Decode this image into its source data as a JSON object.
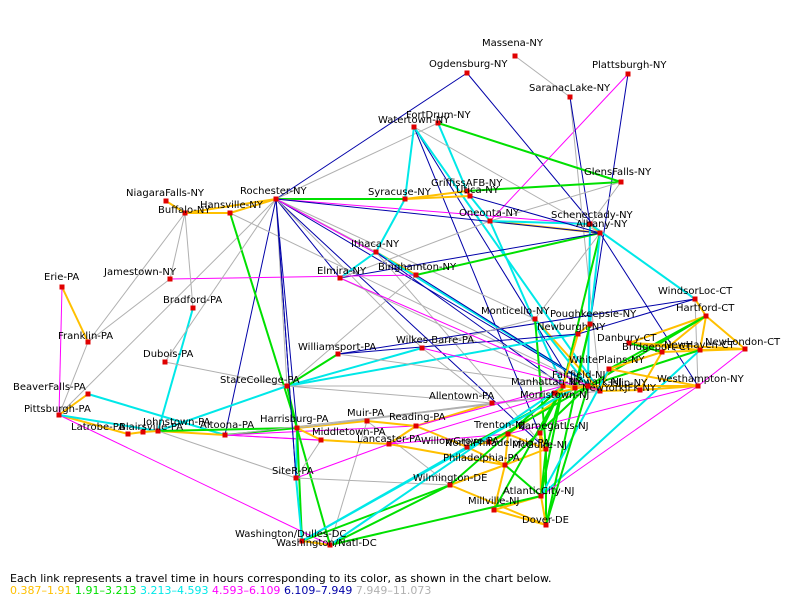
{
  "caption": "Each link represents a travel time in hours corresponding to its color, as shown in the chart below.",
  "legend": [
    {
      "label": "0.387–1.91",
      "color": "#ffc000"
    },
    {
      "label": "1.91–3.213",
      "color": "#00e000"
    },
    {
      "label": "3.213–4.593",
      "color": "#00e8e8"
    },
    {
      "label": "4.593–6.109",
      "color": "#ff00ff"
    },
    {
      "label": "6.109–7.949",
      "color": "#0000a8"
    },
    {
      "label": "7.949–11.073",
      "color": "#b0b0b0"
    }
  ],
  "nodes": [
    {
      "id": "massena",
      "label": "Massena-NY"
    },
    {
      "id": "ogdensburg",
      "label": "Ogdensburg-NY"
    },
    {
      "id": "plattsburgh",
      "label": "Plattsburgh-NY"
    },
    {
      "id": "saranac",
      "label": "SaranacLake-NY"
    },
    {
      "id": "fortdrum",
      "label": "FortDrum-NY"
    },
    {
      "id": "watertown",
      "label": "Watertown-NY"
    },
    {
      "id": "glensfalls",
      "label": "GlensFalls-NY"
    },
    {
      "id": "griffiss",
      "label": "GriffissAFB-NY"
    },
    {
      "id": "utica",
      "label": "Utica-NY"
    },
    {
      "id": "niagara",
      "label": "NiagaraFalls-NY"
    },
    {
      "id": "rochester",
      "label": "Rochester-NY"
    },
    {
      "id": "syracuse",
      "label": "Syracuse-NY"
    },
    {
      "id": "oneonta",
      "label": "Oneonta-NY"
    },
    {
      "id": "buffalo",
      "label": "Buffalo-NY"
    },
    {
      "id": "hansville",
      "label": "Hansville-NY"
    },
    {
      "id": "schenectady",
      "label": "Schenectady-NY"
    },
    {
      "id": "albany",
      "label": "Albany-NY"
    },
    {
      "id": "ithaca",
      "label": "Ithaca-NY"
    },
    {
      "id": "binghamton",
      "label": "Binghamton-NY"
    },
    {
      "id": "jamestown",
      "label": "Jamestown-NY"
    },
    {
      "id": "elmira",
      "label": "Elmira-NY"
    },
    {
      "id": "erie",
      "label": "Erie-PA"
    },
    {
      "id": "bradford",
      "label": "Bradford-PA"
    },
    {
      "id": "windsorloc",
      "label": "WindsorLoc-CT"
    },
    {
      "id": "hartford",
      "label": "Hartford-CT"
    },
    {
      "id": "monticello",
      "label": "Monticello-NY"
    },
    {
      "id": "poughkeepsie",
      "label": "Poughkeepsie-NY"
    },
    {
      "id": "newburgh",
      "label": "Newburgh-NY"
    },
    {
      "id": "franklin",
      "label": "Franklin-PA"
    },
    {
      "id": "danbury",
      "label": "Danbury-CT"
    },
    {
      "id": "newlondon",
      "label": "NewLondon-CT"
    },
    {
      "id": "dubois",
      "label": "Dubois-PA"
    },
    {
      "id": "williamsport",
      "label": "Williamsport-PA"
    },
    {
      "id": "wilkesbarre",
      "label": "Wilkes-Barre-PA"
    },
    {
      "id": "bridgeport",
      "label": "Bridgeport-CT"
    },
    {
      "id": "newhaven",
      "label": "NewHaven-CT"
    },
    {
      "id": "whiteplains",
      "label": "WhitePlains-NY"
    },
    {
      "id": "westhampton",
      "label": "Westhampton-NY"
    },
    {
      "id": "statecollege",
      "label": "StateCollege-PA"
    },
    {
      "id": "beaverfalls",
      "label": "BeaverFalls-PA"
    },
    {
      "id": "allentown",
      "label": "Allentown-PA"
    },
    {
      "id": "pittsburgh",
      "label": "Pittsburgh-PA"
    },
    {
      "id": "johnstown",
      "label": "Johnstown-PA"
    },
    {
      "id": "altoona",
      "label": "Altoona-PA"
    },
    {
      "id": "harrisburg",
      "label": "Harrisburg-PA"
    },
    {
      "id": "muir",
      "label": "Muir-PA"
    },
    {
      "id": "reading",
      "label": "Reading-PA"
    },
    {
      "id": "latrobe",
      "label": "Latrobe-PA"
    },
    {
      "id": "blairsville",
      "label": "Blairsville-PA"
    },
    {
      "id": "trenton",
      "label": "Trenton-NJ"
    },
    {
      "id": "barnegat",
      "label": "BarnegatLs-NJ"
    },
    {
      "id": "willowgrove",
      "label": "WillowGrove-PA"
    },
    {
      "id": "middletown",
      "label": "Middletown-PA"
    },
    {
      "id": "lancaster",
      "label": "Lancaster-PA"
    },
    {
      "id": "northphila",
      "label": "NorthPhiladelphia-PA"
    },
    {
      "id": "mcguire",
      "label": "McGuire-NJ"
    },
    {
      "id": "philadelphia",
      "label": "Philadelphia-PA"
    },
    {
      "id": "siter",
      "label": "SiteR-PA"
    },
    {
      "id": "wilmington",
      "label": "Wilmington-DE"
    },
    {
      "id": "atlanticcity",
      "label": "AtlanticCity-NJ"
    },
    {
      "id": "millville",
      "label": "Millville-NJ"
    },
    {
      "id": "dover",
      "label": "Dover-DE"
    },
    {
      "id": "dulles",
      "label": "Washington/Dulles-DC"
    },
    {
      "id": "natl",
      "label": "Washington/Natl-DC"
    },
    {
      "id": "newyorkjfk",
      "label": "NewYorkJFK-NY"
    },
    {
      "id": "nyc1",
      "label": "Manhattan-NY"
    },
    {
      "id": "nyc2",
      "label": "Newark-NJ"
    },
    {
      "id": "nyc3",
      "label": "Fairfield-NJ"
    },
    {
      "id": "nyc4",
      "label": "Morristown-NJ"
    },
    {
      "id": "nyc5",
      "label": "Islip-NY"
    }
  ]
}
